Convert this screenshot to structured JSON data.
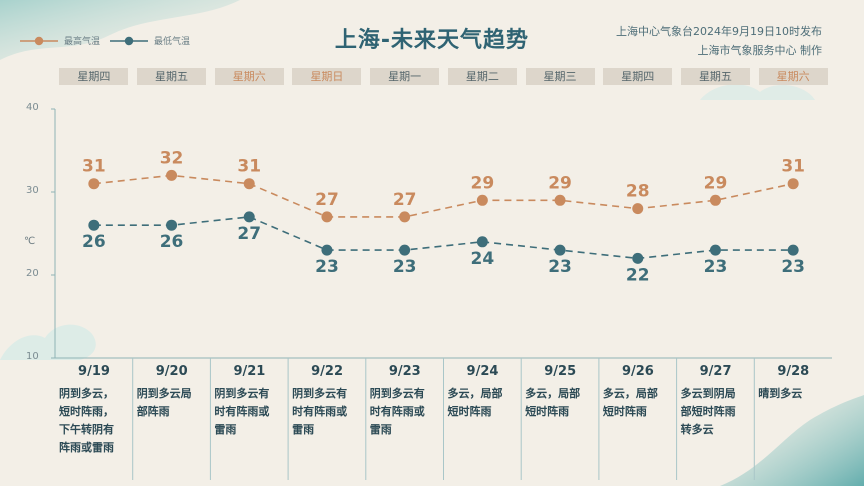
{
  "header": {
    "title": "上海-未来天气趋势",
    "issuer_line1": "上海中心气象台2024年9月19日10时发布",
    "issuer_line2": "上海市气象服务中心 制作"
  },
  "legend": {
    "high_label": "最高气温",
    "low_label": "最低气温"
  },
  "colors": {
    "high": "#c98a5e",
    "low": "#3e6e7a",
    "weekend_text": "#c98a5e"
  },
  "chart_data": {
    "type": "line",
    "title": "上海-未来天气趋势",
    "ylabel": "℃",
    "ylim": [
      10,
      40
    ],
    "yticks": [
      "40",
      "30",
      "20",
      "10"
    ],
    "x": [
      "9/19",
      "9/20",
      "9/21",
      "9/22",
      "9/23",
      "9/24",
      "9/25",
      "9/26",
      "9/27",
      "9/28"
    ],
    "weekdays": [
      "星期四",
      "星期五",
      "星期六",
      "星期日",
      "星期一",
      "星期二",
      "星期三",
      "星期四",
      "星期五",
      "星期六"
    ],
    "weekend": [
      false,
      false,
      true,
      true,
      false,
      false,
      false,
      false,
      false,
      true
    ],
    "series": [
      {
        "name": "最高气温",
        "values": [
          31,
          32,
          31,
          27,
          27,
          29,
          29,
          28,
          29,
          31
        ]
      },
      {
        "name": "最低气温",
        "values": [
          26,
          26,
          27,
          23,
          23,
          24,
          23,
          22,
          23,
          23
        ]
      }
    ],
    "weather": [
      "阴到多云，短时阵雨，下午转阴有阵雨或雷雨",
      "阴到多云局部阵雨",
      "阴到多云有时有阵雨或雷雨",
      "阴到多云有时有阵雨或雷雨",
      "阴到多云有时有阵雨或雷雨",
      "多云，局部短时阵雨",
      "多云，局部短时阵雨",
      "多云，局部短时阵雨",
      "多云到阴局部短时阵雨转多云",
      "晴到多云"
    ],
    "weather_lines": [
      [
        "阴到多云，",
        "短时阵雨，",
        "下午转阴有",
        "阵雨或雷雨"
      ],
      [
        "阴到多云局",
        "部阵雨"
      ],
      [
        "阴到多云有",
        "时有阵雨或",
        "雷雨"
      ],
      [
        "阴到多云有",
        "时有阵雨或",
        "雷雨"
      ],
      [
        "阴到多云有",
        "时有阵雨或",
        "雷雨"
      ],
      [
        "多云，局部",
        "短时阵雨"
      ],
      [
        "多云，局部",
        "短时阵雨"
      ],
      [
        "多云，局部",
        "短时阵雨"
      ],
      [
        "多云到阴局",
        "部短时阵雨",
        "转多云"
      ],
      [
        "晴到多云"
      ]
    ],
    "grid": false
  }
}
